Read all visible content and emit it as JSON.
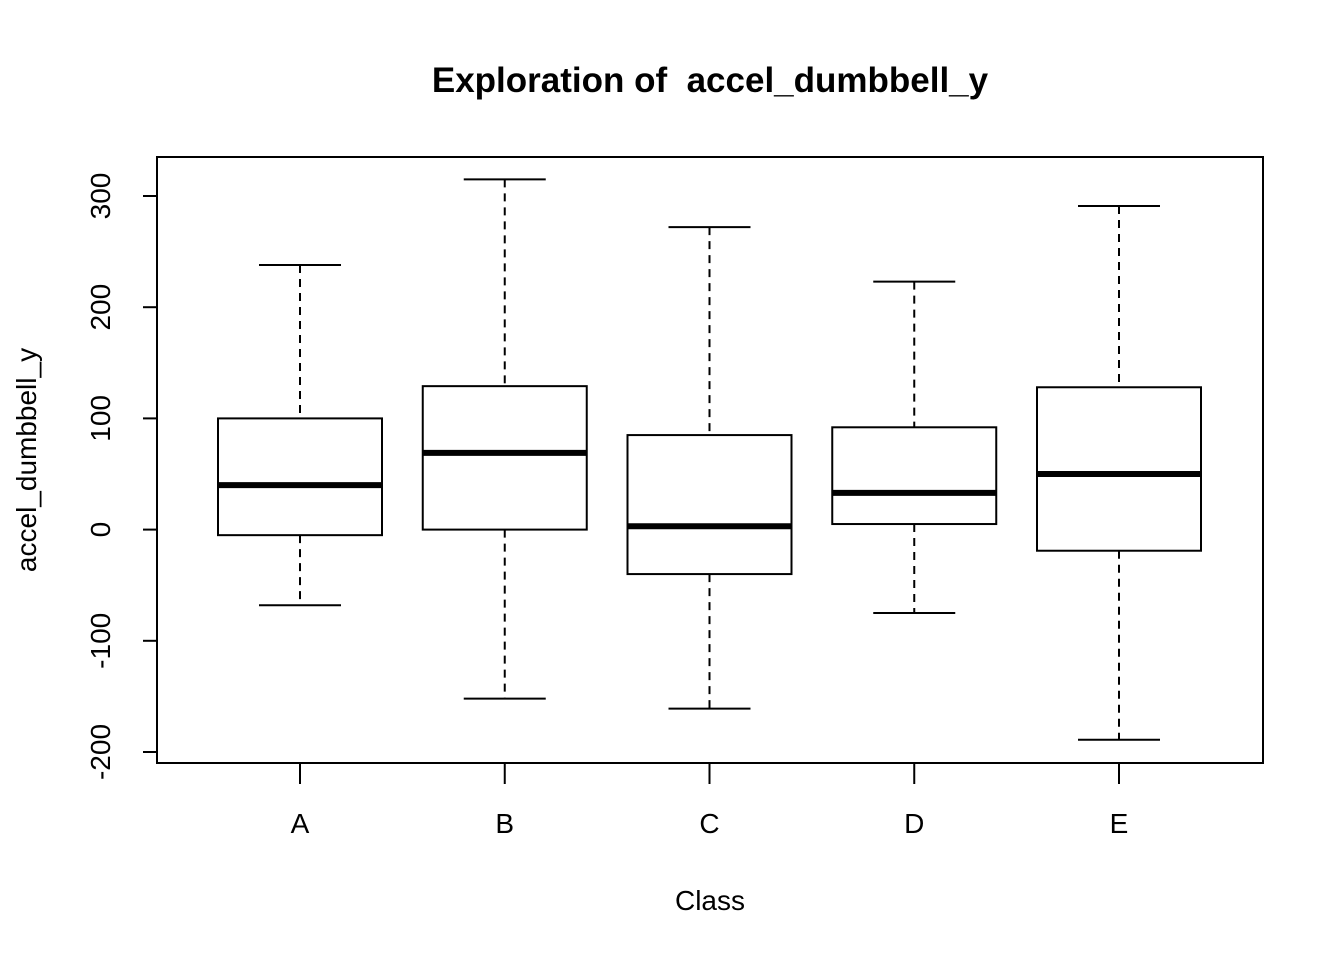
{
  "chart_data": {
    "type": "boxplot",
    "title": "Exploration of  accel_dumbbell_y",
    "xlabel": "Class",
    "ylabel": "accel_dumbbell_y",
    "categories": [
      "A",
      "B",
      "C",
      "D",
      "E"
    ],
    "ylim": [
      -210,
      335
    ],
    "yticks": [
      -200,
      -100,
      0,
      100,
      200,
      300
    ],
    "ytick_labels": [
      "-200",
      "-100",
      "0",
      "100",
      "200",
      "300"
    ],
    "boxes": [
      {
        "category": "A",
        "whisker_low": -68,
        "q1": -5,
        "median": 40,
        "q3": 100,
        "whisker_high": 238
      },
      {
        "category": "B",
        "whisker_low": -152,
        "q1": 0,
        "median": 69,
        "q3": 129,
        "whisker_high": 315
      },
      {
        "category": "C",
        "whisker_low": -161,
        "q1": -40,
        "median": 3,
        "q3": 85,
        "whisker_high": 272
      },
      {
        "category": "D",
        "whisker_low": -75,
        "q1": 5,
        "median": 33,
        "q3": 92,
        "whisker_high": 223
      },
      {
        "category": "E",
        "whisker_low": -189,
        "q1": -19,
        "median": 50,
        "q3": 128,
        "whisker_high": 291
      }
    ],
    "grid": false,
    "legend": "none",
    "colors": {
      "stroke": "#000000",
      "background": "#ffffff"
    }
  }
}
